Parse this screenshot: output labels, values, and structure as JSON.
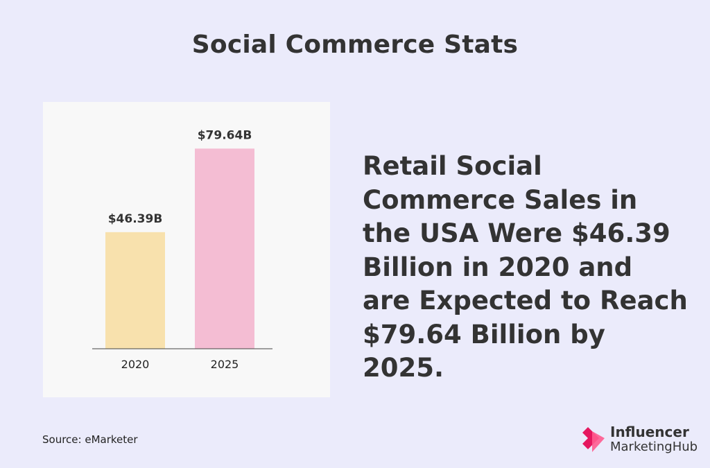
{
  "title": "Social Commerce Stats",
  "headline": "Retail Social Commerce Sales in the USA Were $46.39 Billion in 2020 and are Expected to Reach $79.64 Billion by 2025.",
  "source": "Source: eMarketer",
  "brand": {
    "line1": "Influencer",
    "line2": "MarketingHub",
    "logo_icon": "influencer-marketing-hub-logo-icon",
    "colors": [
      "#e5175f",
      "#ff5b8f"
    ]
  },
  "chart_data": {
    "type": "bar",
    "categories": [
      "2020",
      "2025"
    ],
    "values": [
      46.39,
      79.64
    ],
    "data_labels": [
      "$46.39B",
      "$79.64B"
    ],
    "colors": [
      "#f8e1ad",
      "#f4bdd3"
    ],
    "title": "",
    "xlabel": "",
    "ylabel": "",
    "ylim": [
      0,
      80
    ],
    "grid": false
  }
}
